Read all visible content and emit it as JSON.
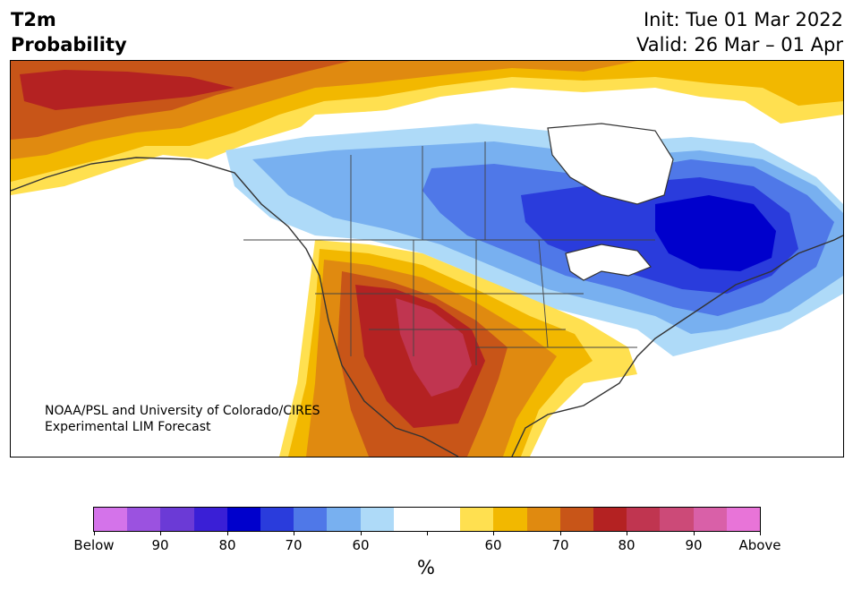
{
  "title": {
    "line1": "T2m",
    "line2": "Probability"
  },
  "init": {
    "line1": "Init: Tue 01 Mar 2022",
    "line2": "Valid: 26 Mar – 01 Apr"
  },
  "credit": {
    "line1": "NOAA/PSL and University of Colorado/CIRES",
    "line2": "Experimental LIM Forecast"
  },
  "colorbar": {
    "colors": [
      "#d473ea",
      "#9b52e0",
      "#6b3ad6",
      "#3a1fd6",
      "#0000cc",
      "#2a3cdc",
      "#4f78e8",
      "#78b0f0",
      "#aedaf8",
      "#ffffff",
      "#ffffff",
      "#ffe050",
      "#f2b800",
      "#e08a10",
      "#c85518",
      "#b42222",
      "#c03550",
      "#cc4a78",
      "#d960a8",
      "#e874d8"
    ],
    "labels": [
      "Below",
      "90",
      "80",
      "70",
      "60",
      "",
      "60",
      "70",
      "80",
      "90",
      "Above"
    ],
    "unit": "%"
  },
  "palette": {
    "below_strong": "#0000cc",
    "below_mid": "#2a3cdc",
    "below_light": "#78b0f0",
    "below_faint": "#aedaf8",
    "above_faint": "#ffe050",
    "above_light": "#f2b800",
    "above_mid": "#e08a10",
    "above_strong": "#c85518",
    "above_red": "#b42222",
    "above_crimson": "#c03550"
  }
}
